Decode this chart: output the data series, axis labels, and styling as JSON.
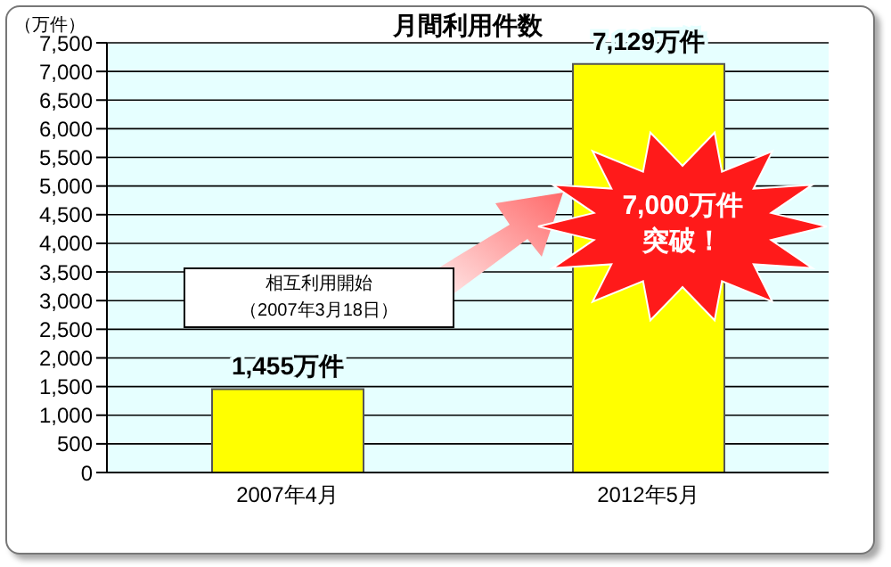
{
  "chart_data": {
    "type": "bar",
    "title": "月間利用件数",
    "ylabel": "（万件）",
    "categories": [
      "2007年4月",
      "2012年5月"
    ],
    "values": [
      1455,
      7129
    ],
    "color": "#ffff00",
    "value_labels": [
      "1,455万件",
      "7,129万件"
    ],
    "ylim": [
      0,
      7500
    ],
    "yticks": [
      {
        "value": 0,
        "label": "0"
      },
      {
        "value": 500,
        "label": "500"
      },
      {
        "value": 1000,
        "label": "1,000"
      },
      {
        "value": 1500,
        "label": "1,500"
      },
      {
        "value": 2000,
        "label": "2,000"
      },
      {
        "value": 2500,
        "label": "2,500"
      },
      {
        "value": 3000,
        "label": "3,000"
      },
      {
        "value": 3500,
        "label": "3,500"
      },
      {
        "value": 4000,
        "label": "4,000"
      },
      {
        "value": 4500,
        "label": "4,500"
      },
      {
        "value": 5000,
        "label": "5,000"
      },
      {
        "value": 5500,
        "label": "5,500"
      },
      {
        "value": 6000,
        "label": "6,000"
      },
      {
        "value": 6500,
        "label": "6,500"
      },
      {
        "value": 7000,
        "label": "7,000"
      },
      {
        "value": 7500,
        "label": "7,500"
      }
    ],
    "grid": "y",
    "annotations": [
      "相互利用開始",
      "（2007年3月18日）",
      "7,000万件",
      "突破！"
    ]
  }
}
